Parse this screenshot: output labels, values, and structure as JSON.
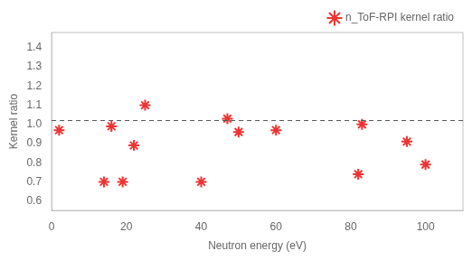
{
  "chart_data": {
    "type": "scatter",
    "xlabel": "Neutron energy (eV)",
    "ylabel": "Kernel ratio",
    "series": [
      {
        "name": "n_ToF-RPI kernel ratio",
        "color": "#ee3333",
        "marker": "star",
        "x": [
          2,
          16,
          19,
          22,
          25,
          40,
          47,
          50,
          60,
          82,
          83,
          95,
          100
        ],
        "values": [
          0.97,
          0.99,
          0.7,
          0.89,
          1.1,
          0.7,
          1.03,
          0.96,
          0.97,
          0.74,
          1.0,
          0.91,
          0.79
        ]
      },
      {
        "color": "#ee3333",
        "marker": "star",
        "x": [
          14
        ],
        "values": [
          0.7
        ]
      }
    ],
    "hlines": [
      {
        "y": 1.02,
        "color": "#555555",
        "line_style": "dashed"
      }
    ],
    "xlim": [
      0,
      110
    ],
    "ylim": [
      0.55,
      1.48
    ],
    "xticks": [
      0,
      20,
      40,
      60,
      80,
      100
    ],
    "yticks": [
      0.6,
      0.7,
      0.8,
      0.9,
      {
        "value": 1.0,
        "label": "1.0"
      },
      1.1,
      1.2,
      1.3,
      1.4
    ],
    "grid": false,
    "legend": "upper right"
  }
}
